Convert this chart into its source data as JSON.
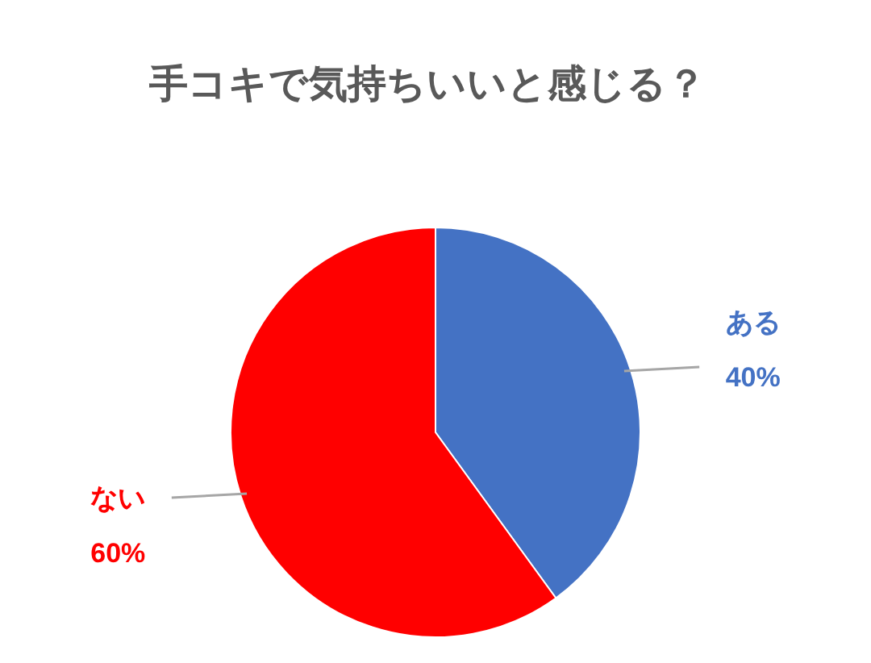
{
  "chart_data": {
    "type": "pie",
    "title": "手コキで気持ちいいと感じる？",
    "categories": [
      "ある",
      "ない"
    ],
    "values": [
      40,
      60
    ],
    "value_labels": [
      "40%",
      "60%"
    ],
    "colors": [
      "#4472c4",
      "#ff0000"
    ]
  }
}
